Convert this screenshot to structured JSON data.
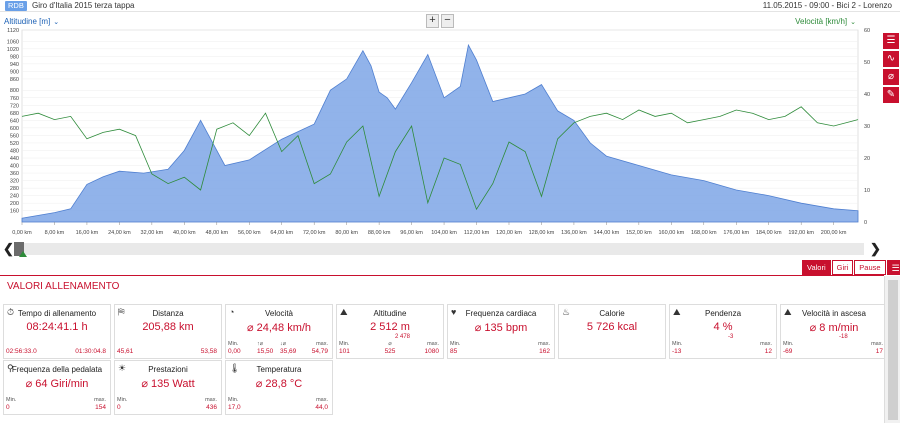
{
  "app": {
    "logo": "RDB",
    "title": "Giro d'Italia 2015 terza tappa",
    "session_info": "11.05.2015 - 09:00 - Bici 2 - Lorenzo"
  },
  "chart_header": {
    "left_axis": "Altitudine [m]",
    "right_axis": "Velocità [km/h]",
    "zoom_in": "+",
    "zoom_out": "−"
  },
  "tabs": [
    {
      "label": "Valori",
      "active": true
    },
    {
      "label": "Giri",
      "active": false
    },
    {
      "label": "Pause",
      "active": false
    }
  ],
  "panel": {
    "title": "VALORI ALLENAMENTO"
  },
  "cards": [
    {
      "icon": "⏱",
      "label": "Tempo di allenamento",
      "value": "08:24:41.1 h",
      "min_label": "",
      "max_label": "",
      "min": "02:56:33.0",
      "max": "01:30:04.8"
    },
    {
      "icon": "⛿",
      "label": "Distanza",
      "value": "205,88 km",
      "min_label": "",
      "max_label": "",
      "min": "45,61",
      "max": "53,58"
    },
    {
      "icon": "◔",
      "label": "Velocità",
      "value": "⌀ 24,48 km/h",
      "min_label": "Min.",
      "max_label": "max.",
      "min": "0,00",
      "max": "54,79",
      "mid1_label": "↑⌀",
      "mid1": "15,50",
      "mid2_label": "↓⌀",
      "mid2": "35,69"
    },
    {
      "icon": "⛰",
      "label": "Altitudine",
      "value": "2 512 m",
      "min_label": "Min.",
      "max_label": "max.",
      "min": "101",
      "max": "1080",
      "avg_label": "⌀",
      "avg": "525",
      "down": "2 478"
    },
    {
      "icon": "♥",
      "label": "Frequenza cardiaca",
      "value": "⌀ 135 bpm",
      "min_label": "Min.",
      "max_label": "max.",
      "min": "85",
      "max": "162"
    },
    {
      "icon": "♨",
      "label": "Calorie",
      "value": "5 726 kcal",
      "min_label": "",
      "max_label": "",
      "min": "",
      "max": ""
    },
    {
      "icon": "⛰",
      "label": "Pendenza",
      "value": "4 %",
      "min_label": "Min.",
      "max_label": "max.",
      "min": "-13",
      "max": "12",
      "down": "-3"
    },
    {
      "icon": "⛰",
      "label": "Velocità in ascesa",
      "value": "⌀ 8 m/min",
      "min_label": "Min.",
      "max_label": "max.",
      "min": "-69",
      "max": "17",
      "down": "-18"
    },
    {
      "icon": "⚲",
      "label": "Frequenza della pedalata",
      "value": "⌀ 64 Giri/min",
      "min_label": "Min.",
      "max_label": "max.",
      "min": "0",
      "max": "154"
    },
    {
      "icon": "☀",
      "label": "Prestazioni",
      "value": "⌀ 135 Watt",
      "min_label": "Min.",
      "max_label": "max.",
      "min": "0",
      "max": "436"
    },
    {
      "icon": "🌡",
      "label": "Temperatura",
      "value": "⌀ 28,8 °C",
      "min_label": "Min.",
      "max_label": "max.",
      "min": "17,0",
      "max": "44,0"
    }
  ],
  "chart_data": {
    "type": "area",
    "xlabel": "",
    "ylabel": "Altitudine [m]",
    "y2label": "Velocità [km/h]",
    "x_ticks": [
      "0,00 km",
      "8,00 km",
      "16,00 km",
      "24,00 km",
      "32,00 km",
      "40,00 km",
      "48,00 km",
      "56,00 km",
      "64,00 km",
      "72,00 km",
      "80,00 km",
      "88,00 km",
      "96,00 km",
      "104,00 km",
      "112,00 km",
      "120,00 km",
      "128,00 km",
      "136,00 km",
      "144,00 km",
      "152,00 km",
      "160,00 km",
      "168,00 km",
      "176,00 km",
      "184,00 km",
      "192,00 km",
      "200,00 km"
    ],
    "y_ticks": [
      160,
      200,
      240,
      280,
      320,
      360,
      400,
      440,
      480,
      520,
      560,
      600,
      640,
      680,
      720,
      760,
      800,
      860,
      900,
      940,
      980,
      1020,
      1060,
      1120
    ],
    "y2_ticks": [
      0,
      10,
      20,
      30,
      40,
      50,
      60
    ],
    "xlim": [
      0,
      206
    ],
    "ylim": [
      100,
      1120
    ],
    "y2lim": [
      0,
      60
    ],
    "series": [
      {
        "name": "Altitudine [m]",
        "color": "#7ea6e6",
        "x": [
          0,
          8,
          12,
          16,
          20,
          24,
          30,
          36,
          40,
          44,
          46,
          50,
          56,
          64,
          72,
          76,
          80,
          84,
          86,
          88,
          90,
          92,
          96,
          100,
          104,
          108,
          110,
          112,
          116,
          120,
          124,
          128,
          132,
          136,
          140,
          144,
          152,
          160,
          168,
          176,
          184,
          192,
          200,
          206
        ],
        "y": [
          120,
          150,
          170,
          300,
          340,
          370,
          360,
          380,
          480,
          640,
          560,
          400,
          430,
          540,
          620,
          800,
          860,
          1010,
          930,
          790,
          760,
          700,
          840,
          990,
          760,
          820,
          1040,
          960,
          740,
          760,
          780,
          830,
          690,
          640,
          520,
          450,
          400,
          350,
          320,
          270,
          240,
          200,
          170,
          160
        ]
      },
      {
        "name": "Velocità [km/h]",
        "color": "#2e8b3a",
        "x": [
          0,
          4,
          8,
          12,
          16,
          20,
          24,
          28,
          32,
          36,
          40,
          44,
          48,
          52,
          56,
          60,
          64,
          68,
          72,
          76,
          80,
          84,
          88,
          92,
          96,
          100,
          104,
          108,
          112,
          116,
          120,
          124,
          128,
          132,
          136,
          140,
          144,
          148,
          152,
          156,
          160,
          164,
          168,
          172,
          176,
          180,
          184,
          188,
          192,
          196,
          200,
          206
        ],
        "y": [
          33,
          34,
          32,
          33,
          26,
          28,
          29,
          27,
          15,
          12,
          14,
          10,
          29,
          31,
          27,
          34,
          22,
          27,
          12,
          15,
          25,
          30,
          8,
          22,
          30,
          6,
          20,
          18,
          4,
          12,
          25,
          22,
          8,
          26,
          31,
          33,
          34,
          32,
          35,
          33,
          34,
          31,
          32,
          33,
          35,
          34,
          32,
          33,
          36,
          31,
          30,
          32
        ]
      }
    ]
  }
}
